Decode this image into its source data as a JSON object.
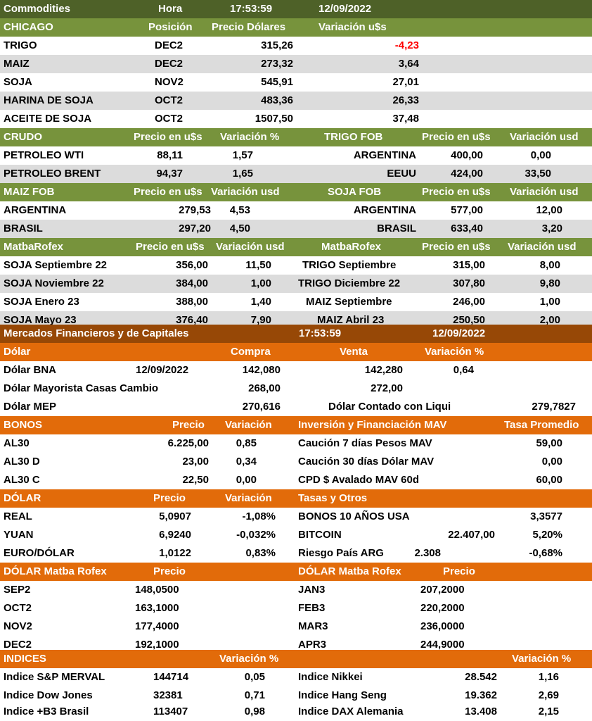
{
  "commodities": {
    "header": {
      "title": "Commodities",
      "hora_label": "Hora",
      "time": "17:53:59",
      "date": "12/09/2022"
    },
    "chicago": {
      "headers": {
        "title": "CHICAGO",
        "position": "Posición",
        "price": "Precio Dólares",
        "variation": "Variación u$s"
      },
      "rows": [
        {
          "name": "TRIGO",
          "position": "DEC2",
          "price": "315,26",
          "variation": "-4,23"
        },
        {
          "name": "MAIZ",
          "position": "DEC2",
          "price": "273,32",
          "variation": "3,64"
        },
        {
          "name": "SOJA",
          "position": "NOV2",
          "price": "545,91",
          "variation": "27,01"
        },
        {
          "name": "HARINA DE SOJA",
          "position": "OCT2",
          "price": "483,36",
          "variation": "26,33"
        },
        {
          "name": "ACEITE DE SOJA",
          "position": "OCT2",
          "price": "1507,50",
          "variation": "37,48"
        }
      ]
    },
    "crudo": {
      "headers": {
        "title": "CRUDO",
        "price": "Precio en u$s",
        "variation": "Variación %"
      },
      "rows": [
        {
          "name": "PETROLEO WTI",
          "price": "88,11",
          "variation": "1,57"
        },
        {
          "name": "PETROLEO BRENT",
          "price": "94,37",
          "variation": "1,65"
        }
      ]
    },
    "trigo_fob": {
      "headers": {
        "title": "TRIGO FOB",
        "price": "Precio en u$s",
        "variation": "Variación usd"
      },
      "rows": [
        {
          "name": "ARGENTINA",
          "price": "400,00",
          "variation": "0,00"
        },
        {
          "name": "EEUU",
          "price": "424,00",
          "variation": "33,50"
        }
      ]
    },
    "maiz_fob": {
      "headers": {
        "title": "MAIZ FOB",
        "price": "Precio en u$s",
        "variation": "Variación usd"
      },
      "rows": [
        {
          "name": "ARGENTINA",
          "price": "279,53",
          "variation": "4,53"
        },
        {
          "name": "BRASIL",
          "price": "297,20",
          "variation": "4,50"
        }
      ]
    },
    "soja_fob": {
      "headers": {
        "title": "SOJA FOB",
        "price": "Precio en u$s",
        "variation": "Variación usd"
      },
      "rows": [
        {
          "name": "ARGENTINA",
          "price": "577,00",
          "variation": "12,00"
        },
        {
          "name": "BRASIL",
          "price": "633,40",
          "variation": "3,20"
        }
      ]
    },
    "matba_left": {
      "headers": {
        "title": "MatbaRofex",
        "price": "Precio en u$s",
        "variation": "Variación usd"
      },
      "rows": [
        {
          "name": "SOJA Septiembre 22",
          "price": "356,00",
          "variation": "11,50"
        },
        {
          "name": "SOJA Noviembre 22",
          "price": "384,00",
          "variation": "1,00"
        },
        {
          "name": "SOJA Enero 23",
          "price": "388,00",
          "variation": "1,40"
        },
        {
          "name": "SOJA Mayo 23",
          "price": "376,40",
          "variation": "7,90"
        }
      ]
    },
    "matba_right": {
      "headers": {
        "title": "MatbaRofex",
        "price": "Precio en u$s",
        "variation": "Variación usd"
      },
      "rows": [
        {
          "name": "TRIGO Septiembre",
          "price": "315,00",
          "variation": "8,00"
        },
        {
          "name": "TRIGO Diciembre 22",
          "price": "307,80",
          "variation": "9,80"
        },
        {
          "name": "MAIZ Septiembre",
          "price": "246,00",
          "variation": "1,00"
        },
        {
          "name": "MAIZ Abril 23",
          "price": "250,50",
          "variation": "2,00"
        }
      ]
    }
  },
  "financial": {
    "header": {
      "title": "Mercados Financieros y de Capitales",
      "time": "17:53:59",
      "date": "12/09/2022"
    },
    "dolar": {
      "headers": {
        "title": "Dólar",
        "buy": "Compra",
        "sell": "Venta",
        "variation": "Variación %"
      },
      "bna": {
        "name": "Dólar BNA",
        "date": "12/09/2022",
        "buy": "142,080",
        "sell": "142,280",
        "variation": "0,64"
      },
      "mayorista": {
        "name": "Dólar Mayorista Casas Cambio",
        "buy": "268,00",
        "sell": "272,00"
      },
      "mep": {
        "name": "Dólar MEP",
        "buy": "270,616",
        "ccl_label": "Dólar Contado con Liqui",
        "ccl_value": "279,7827"
      }
    },
    "bonos": {
      "headers": {
        "title": "BONOS",
        "price": "Precio",
        "variation": "Variación"
      },
      "rows": [
        {
          "name": "AL30",
          "price": "6.225,00",
          "variation": "0,85"
        },
        {
          "name": "AL30 D",
          "price": "23,00",
          "variation": "0,34"
        },
        {
          "name": "AL30 C",
          "price": "22,50",
          "variation": "0,00"
        }
      ]
    },
    "mav": {
      "headers": {
        "title": "Inversión y Financiación MAV",
        "rate": "Tasa Promedio"
      },
      "rows": [
        {
          "name": "Caución 7 días Pesos MAV",
          "rate": "59,00"
        },
        {
          "name": "Caución 30 días Dólar MAV",
          "rate": "0,00"
        },
        {
          "name": "CPD $ Avalado  MAV 60d",
          "rate": "60,00"
        }
      ]
    },
    "fx": {
      "headers": {
        "title": "DÓLAR",
        "price": "Precio",
        "variation": "Variación"
      },
      "rows": [
        {
          "name": "REAL",
          "price": "5,0907",
          "variation": "-1,08%"
        },
        {
          "name": "YUAN",
          "price": "6,9240",
          "variation": "-0,032%"
        },
        {
          "name": "EURO/DÓLAR",
          "price": "1,0122",
          "variation": "0,83%"
        }
      ]
    },
    "tasas": {
      "headers": {
        "title": "Tasas y Otros"
      },
      "bonos_usa": {
        "name": "BONOS 10 AÑOS USA",
        "value": "3,3577"
      },
      "bitcoin": {
        "name": "BITCOIN",
        "value": "22.407,00",
        "variation": "5,20%"
      },
      "riesgo": {
        "name": "Riesgo País ARG",
        "value": "2.308",
        "variation": "-0,68%"
      }
    },
    "matba_dolar_left": {
      "headers": {
        "title": "DÓLAR Matba Rofex",
        "price": "Precio"
      },
      "rows": [
        {
          "name": "SEP2",
          "price": "148,0500"
        },
        {
          "name": "OCT2",
          "price": "163,1000"
        },
        {
          "name": "NOV2",
          "price": "177,4000"
        },
        {
          "name": "DEC2",
          "price": "192,1000"
        }
      ]
    },
    "matba_dolar_right": {
      "headers": {
        "title": "DÓLAR Matba Rofex",
        "price": "Precio"
      },
      "rows": [
        {
          "name": "JAN3",
          "price": "207,2000"
        },
        {
          "name": "FEB3",
          "price": "220,2000"
        },
        {
          "name": "MAR3",
          "price": "236,0000"
        },
        {
          "name": "APR3",
          "price": "244,9000"
        }
      ]
    },
    "indices": {
      "headers": {
        "title": "INDICES",
        "variation_left": "Variación %",
        "variation_right": "Variación %"
      },
      "left": [
        {
          "name": "Indice S&P MERVAL",
          "value": "144714",
          "variation": "0,05"
        },
        {
          "name": "Indice Dow Jones",
          "value": "32381",
          "variation": "0,71"
        },
        {
          "name": "Indice +B3 Brasil",
          "value": "113407",
          "variation": "0,98"
        }
      ],
      "right": [
        {
          "name": "Indice Nikkei",
          "value": "28.542",
          "variation": "1,16"
        },
        {
          "name": "Indice Hang Seng",
          "value": "19.362",
          "variation": "2,69"
        },
        {
          "name": "Indice DAX Alemania",
          "value": "13.408",
          "variation": "2,15"
        }
      ]
    }
  },
  "colors": {
    "dark_green": "#4e6128",
    "light_green": "#77933c",
    "brown": "#974806",
    "orange": "#e26b0a",
    "row_gray": "#dcdcdc",
    "negative_red": "#ff0000"
  }
}
